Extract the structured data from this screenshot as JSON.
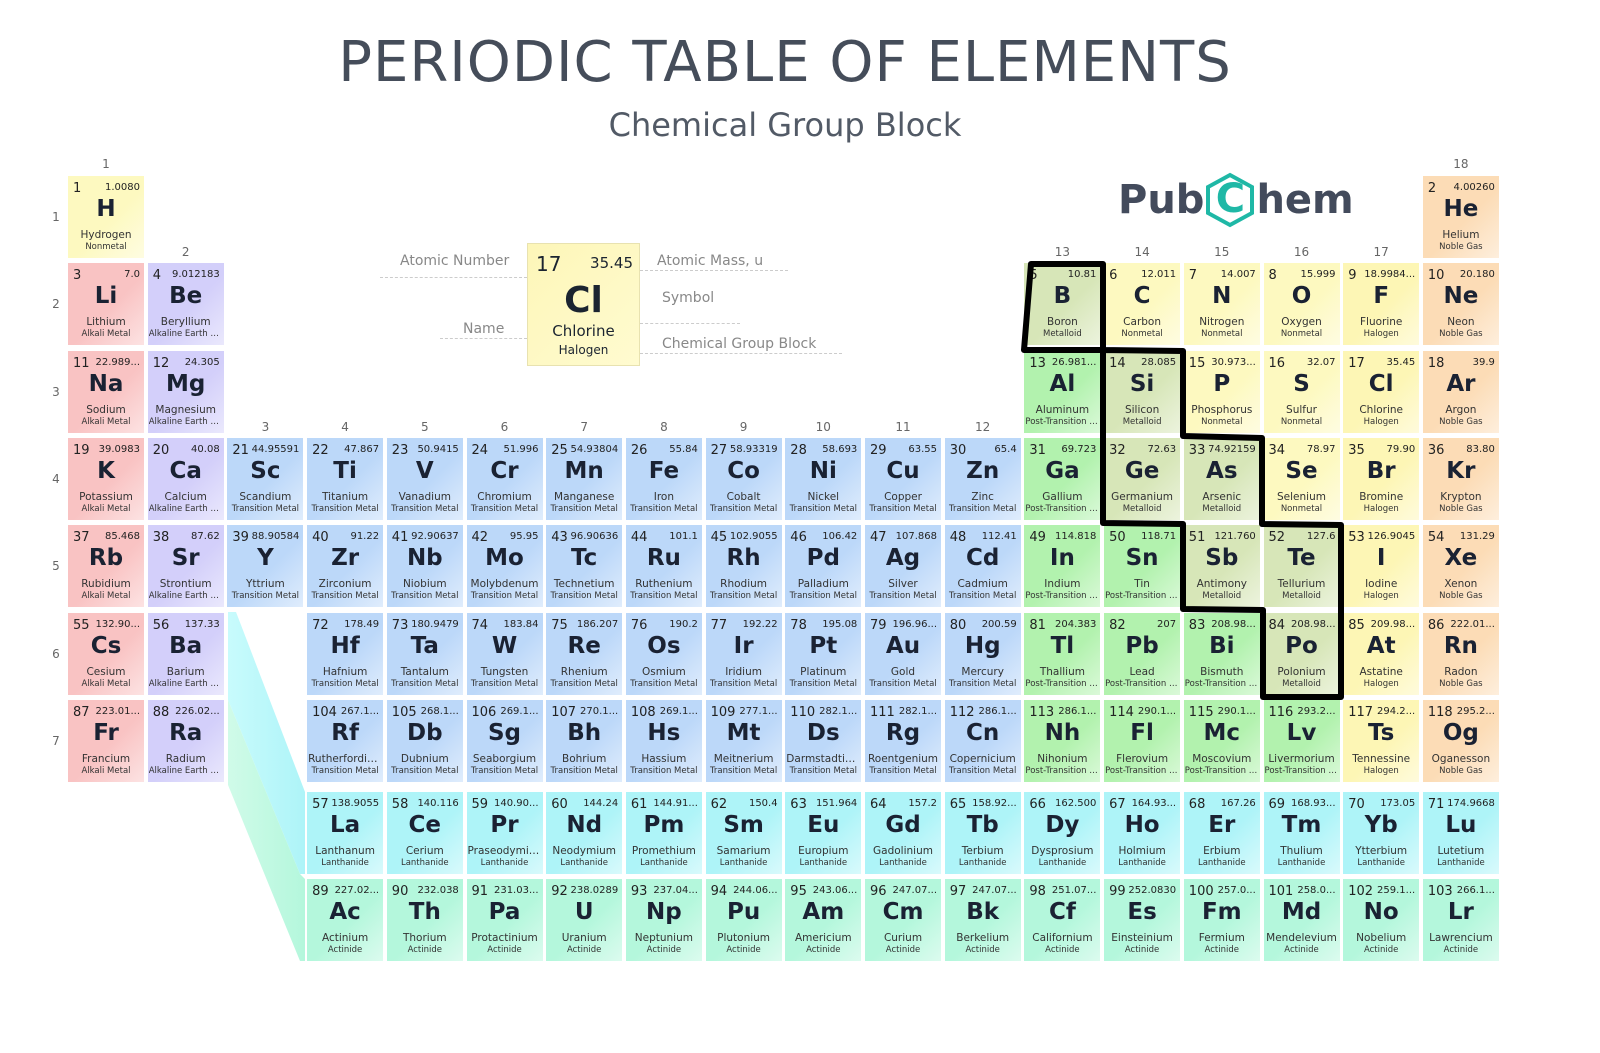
{
  "header": {
    "title": "PERIODIC TABLE OF ELEMENTS",
    "subtitle": "Chemical Group Block"
  },
  "logo": {
    "text_left": "Pub",
    "text_mid": "C",
    "text_right": "hem",
    "color": "#434b5c",
    "accent": "#1fb8a6"
  },
  "groups": [
    "1",
    "2",
    "3",
    "4",
    "5",
    "6",
    "7",
    "8",
    "9",
    "10",
    "11",
    "12",
    "13",
    "14",
    "15",
    "16",
    "17",
    "18"
  ],
  "periods": [
    "1",
    "2",
    "3",
    "4",
    "5",
    "6",
    "7"
  ],
  "key": {
    "number": "17",
    "mass": "35.45",
    "symbol": "Cl",
    "name": "Chlorine",
    "category": "Halogen",
    "labels": {
      "atomic_number": "Atomic Number",
      "name": "Name",
      "atomic_mass": "Atomic Mass, u",
      "symbol": "Symbol",
      "group_block": "Chemical Group Block"
    }
  },
  "categories": {
    "alk": {
      "label": "Alkali Metal",
      "color": "#f9c3c3"
    },
    "ae": {
      "label": "Alkaline Earth Metal",
      "color": "#d3cffa"
    },
    "tm": {
      "label": "Transition Metal",
      "color": "#bcd8f9"
    },
    "ptm": {
      "label": "Post-Transition Metal",
      "color": "#b2f2ae"
    },
    "met": {
      "label": "Metalloid",
      "color": "#d7e6b8"
    },
    "nm": {
      "label": "Nonmetal",
      "color": "#fdf9c0"
    },
    "hal": {
      "label": "Halogen",
      "color": "#fdf6b5"
    },
    "ng": {
      "label": "Noble Gas",
      "color": "#fcdcb6"
    },
    "lan": {
      "label": "Lanthanide",
      "color": "#aef4f8"
    },
    "act": {
      "label": "Actinide",
      "color": "#b4f7dc"
    }
  },
  "highlight": {
    "label": "Metalloid",
    "outline_color": "#000000"
  },
  "elements": [
    {
      "n": "1",
      "s": "H",
      "name": "Hydrogen",
      "m": "1.0080",
      "c": "nm",
      "p": 1,
      "g": 1
    },
    {
      "n": "2",
      "s": "He",
      "name": "Helium",
      "m": "4.00260",
      "c": "ng",
      "p": 1,
      "g": 18
    },
    {
      "n": "3",
      "s": "Li",
      "name": "Lithium",
      "m": "7.0",
      "c": "alk",
      "p": 2,
      "g": 1
    },
    {
      "n": "4",
      "s": "Be",
      "name": "Beryllium",
      "m": "9.012183",
      "c": "ae",
      "p": 2,
      "g": 2
    },
    {
      "n": "5",
      "s": "B",
      "name": "Boron",
      "m": "10.81",
      "c": "met",
      "p": 2,
      "g": 13
    },
    {
      "n": "6",
      "s": "C",
      "name": "Carbon",
      "m": "12.011",
      "c": "nm",
      "p": 2,
      "g": 14
    },
    {
      "n": "7",
      "s": "N",
      "name": "Nitrogen",
      "m": "14.007",
      "c": "nm",
      "p": 2,
      "g": 15
    },
    {
      "n": "8",
      "s": "O",
      "name": "Oxygen",
      "m": "15.999",
      "c": "nm",
      "p": 2,
      "g": 16
    },
    {
      "n": "9",
      "s": "F",
      "name": "Fluorine",
      "m": "18.9984...",
      "c": "hal",
      "p": 2,
      "g": 17
    },
    {
      "n": "10",
      "s": "Ne",
      "name": "Neon",
      "m": "20.180",
      "c": "ng",
      "p": 2,
      "g": 18
    },
    {
      "n": "11",
      "s": "Na",
      "name": "Sodium",
      "m": "22.989...",
      "c": "alk",
      "p": 3,
      "g": 1
    },
    {
      "n": "12",
      "s": "Mg",
      "name": "Magnesium",
      "m": "24.305",
      "c": "ae",
      "p": 3,
      "g": 2
    },
    {
      "n": "13",
      "s": "Al",
      "name": "Aluminum",
      "m": "26.981...",
      "c": "ptm",
      "p": 3,
      "g": 13
    },
    {
      "n": "14",
      "s": "Si",
      "name": "Silicon",
      "m": "28.085",
      "c": "met",
      "p": 3,
      "g": 14
    },
    {
      "n": "15",
      "s": "P",
      "name": "Phosphorus",
      "m": "30.973...",
      "c": "nm",
      "p": 3,
      "g": 15
    },
    {
      "n": "16",
      "s": "S",
      "name": "Sulfur",
      "m": "32.07",
      "c": "nm",
      "p": 3,
      "g": 16
    },
    {
      "n": "17",
      "s": "Cl",
      "name": "Chlorine",
      "m": "35.45",
      "c": "hal",
      "p": 3,
      "g": 17
    },
    {
      "n": "18",
      "s": "Ar",
      "name": "Argon",
      "m": "39.9",
      "c": "ng",
      "p": 3,
      "g": 18
    },
    {
      "n": "19",
      "s": "K",
      "name": "Potassium",
      "m": "39.0983",
      "c": "alk",
      "p": 4,
      "g": 1
    },
    {
      "n": "20",
      "s": "Ca",
      "name": "Calcium",
      "m": "40.08",
      "c": "ae",
      "p": 4,
      "g": 2
    },
    {
      "n": "21",
      "s": "Sc",
      "name": "Scandium",
      "m": "44.95591",
      "c": "tm",
      "p": 4,
      "g": 3
    },
    {
      "n": "22",
      "s": "Ti",
      "name": "Titanium",
      "m": "47.867",
      "c": "tm",
      "p": 4,
      "g": 4
    },
    {
      "n": "23",
      "s": "V",
      "name": "Vanadium",
      "m": "50.9415",
      "c": "tm",
      "p": 4,
      "g": 5
    },
    {
      "n": "24",
      "s": "Cr",
      "name": "Chromium",
      "m": "51.996",
      "c": "tm",
      "p": 4,
      "g": 6
    },
    {
      "n": "25",
      "s": "Mn",
      "name": "Manganese",
      "m": "54.93804",
      "c": "tm",
      "p": 4,
      "g": 7
    },
    {
      "n": "26",
      "s": "Fe",
      "name": "Iron",
      "m": "55.84",
      "c": "tm",
      "p": 4,
      "g": 8
    },
    {
      "n": "27",
      "s": "Co",
      "name": "Cobalt",
      "m": "58.93319",
      "c": "tm",
      "p": 4,
      "g": 9
    },
    {
      "n": "28",
      "s": "Ni",
      "name": "Nickel",
      "m": "58.693",
      "c": "tm",
      "p": 4,
      "g": 10
    },
    {
      "n": "29",
      "s": "Cu",
      "name": "Copper",
      "m": "63.55",
      "c": "tm",
      "p": 4,
      "g": 11
    },
    {
      "n": "30",
      "s": "Zn",
      "name": "Zinc",
      "m": "65.4",
      "c": "tm",
      "p": 4,
      "g": 12
    },
    {
      "n": "31",
      "s": "Ga",
      "name": "Gallium",
      "m": "69.723",
      "c": "ptm",
      "p": 4,
      "g": 13
    },
    {
      "n": "32",
      "s": "Ge",
      "name": "Germanium",
      "m": "72.63",
      "c": "met",
      "p": 4,
      "g": 14
    },
    {
      "n": "33",
      "s": "As",
      "name": "Arsenic",
      "m": "74.92159",
      "c": "met",
      "p": 4,
      "g": 15
    },
    {
      "n": "34",
      "s": "Se",
      "name": "Selenium",
      "m": "78.97",
      "c": "nm",
      "p": 4,
      "g": 16
    },
    {
      "n": "35",
      "s": "Br",
      "name": "Bromine",
      "m": "79.90",
      "c": "hal",
      "p": 4,
      "g": 17
    },
    {
      "n": "36",
      "s": "Kr",
      "name": "Krypton",
      "m": "83.80",
      "c": "ng",
      "p": 4,
      "g": 18
    },
    {
      "n": "37",
      "s": "Rb",
      "name": "Rubidium",
      "m": "85.468",
      "c": "alk",
      "p": 5,
      "g": 1
    },
    {
      "n": "38",
      "s": "Sr",
      "name": "Strontium",
      "m": "87.62",
      "c": "ae",
      "p": 5,
      "g": 2
    },
    {
      "n": "39",
      "s": "Y",
      "name": "Yttrium",
      "m": "88.90584",
      "c": "tm",
      "p": 5,
      "g": 3
    },
    {
      "n": "40",
      "s": "Zr",
      "name": "Zirconium",
      "m": "91.22",
      "c": "tm",
      "p": 5,
      "g": 4
    },
    {
      "n": "41",
      "s": "Nb",
      "name": "Niobium",
      "m": "92.90637",
      "c": "tm",
      "p": 5,
      "g": 5
    },
    {
      "n": "42",
      "s": "Mo",
      "name": "Molybdenum",
      "m": "95.95",
      "c": "tm",
      "p": 5,
      "g": 6
    },
    {
      "n": "43",
      "s": "Tc",
      "name": "Technetium",
      "m": "96.90636",
      "c": "tm",
      "p": 5,
      "g": 7
    },
    {
      "n": "44",
      "s": "Ru",
      "name": "Ruthenium",
      "m": "101.1",
      "c": "tm",
      "p": 5,
      "g": 8
    },
    {
      "n": "45",
      "s": "Rh",
      "name": "Rhodium",
      "m": "102.9055",
      "c": "tm",
      "p": 5,
      "g": 9
    },
    {
      "n": "46",
      "s": "Pd",
      "name": "Palladium",
      "m": "106.42",
      "c": "tm",
      "p": 5,
      "g": 10
    },
    {
      "n": "47",
      "s": "Ag",
      "name": "Silver",
      "m": "107.868",
      "c": "tm",
      "p": 5,
      "g": 11
    },
    {
      "n": "48",
      "s": "Cd",
      "name": "Cadmium",
      "m": "112.41",
      "c": "tm",
      "p": 5,
      "g": 12
    },
    {
      "n": "49",
      "s": "In",
      "name": "Indium",
      "m": "114.818",
      "c": "ptm",
      "p": 5,
      "g": 13
    },
    {
      "n": "50",
      "s": "Sn",
      "name": "Tin",
      "m": "118.71",
      "c": "ptm",
      "p": 5,
      "g": 14
    },
    {
      "n": "51",
      "s": "Sb",
      "name": "Antimony",
      "m": "121.760",
      "c": "met",
      "p": 5,
      "g": 15
    },
    {
      "n": "52",
      "s": "Te",
      "name": "Tellurium",
      "m": "127.6",
      "c": "met",
      "p": 5,
      "g": 16
    },
    {
      "n": "53",
      "s": "I",
      "name": "Iodine",
      "m": "126.9045",
      "c": "hal",
      "p": 5,
      "g": 17
    },
    {
      "n": "54",
      "s": "Xe",
      "name": "Xenon",
      "m": "131.29",
      "c": "ng",
      "p": 5,
      "g": 18
    },
    {
      "n": "55",
      "s": "Cs",
      "name": "Cesium",
      "m": "132.90...",
      "c": "alk",
      "p": 6,
      "g": 1
    },
    {
      "n": "56",
      "s": "Ba",
      "name": "Barium",
      "m": "137.33",
      "c": "ae",
      "p": 6,
      "g": 2
    },
    {
      "n": "72",
      "s": "Hf",
      "name": "Hafnium",
      "m": "178.49",
      "c": "tm",
      "p": 6,
      "g": 4
    },
    {
      "n": "73",
      "s": "Ta",
      "name": "Tantalum",
      "m": "180.9479",
      "c": "tm",
      "p": 6,
      "g": 5
    },
    {
      "n": "74",
      "s": "W",
      "name": "Tungsten",
      "m": "183.84",
      "c": "tm",
      "p": 6,
      "g": 6
    },
    {
      "n": "75",
      "s": "Re",
      "name": "Rhenium",
      "m": "186.207",
      "c": "tm",
      "p": 6,
      "g": 7
    },
    {
      "n": "76",
      "s": "Os",
      "name": "Osmium",
      "m": "190.2",
      "c": "tm",
      "p": 6,
      "g": 8
    },
    {
      "n": "77",
      "s": "Ir",
      "name": "Iridium",
      "m": "192.22",
      "c": "tm",
      "p": 6,
      "g": 9
    },
    {
      "n": "78",
      "s": "Pt",
      "name": "Platinum",
      "m": "195.08",
      "c": "tm",
      "p": 6,
      "g": 10
    },
    {
      "n": "79",
      "s": "Au",
      "name": "Gold",
      "m": "196.96...",
      "c": "tm",
      "p": 6,
      "g": 11
    },
    {
      "n": "80",
      "s": "Hg",
      "name": "Mercury",
      "m": "200.59",
      "c": "tm",
      "p": 6,
      "g": 12
    },
    {
      "n": "81",
      "s": "Tl",
      "name": "Thallium",
      "m": "204.383",
      "c": "ptm",
      "p": 6,
      "g": 13
    },
    {
      "n": "82",
      "s": "Pb",
      "name": "Lead",
      "m": "207",
      "c": "ptm",
      "p": 6,
      "g": 14
    },
    {
      "n": "83",
      "s": "Bi",
      "name": "Bismuth",
      "m": "208.98...",
      "c": "ptm",
      "p": 6,
      "g": 15
    },
    {
      "n": "84",
      "s": "Po",
      "name": "Polonium",
      "m": "208.98...",
      "c": "met",
      "p": 6,
      "g": 16
    },
    {
      "n": "85",
      "s": "At",
      "name": "Astatine",
      "m": "209.98...",
      "c": "hal",
      "p": 6,
      "g": 17
    },
    {
      "n": "86",
      "s": "Rn",
      "name": "Radon",
      "m": "222.01...",
      "c": "ng",
      "p": 6,
      "g": 18
    },
    {
      "n": "87",
      "s": "Fr",
      "name": "Francium",
      "m": "223.01...",
      "c": "alk",
      "p": 7,
      "g": 1
    },
    {
      "n": "88",
      "s": "Ra",
      "name": "Radium",
      "m": "226.02...",
      "c": "ae",
      "p": 7,
      "g": 2
    },
    {
      "n": "104",
      "s": "Rf",
      "name": "Rutherfordium",
      "m": "267.1...",
      "c": "tm",
      "p": 7,
      "g": 4
    },
    {
      "n": "105",
      "s": "Db",
      "name": "Dubnium",
      "m": "268.1...",
      "c": "tm",
      "p": 7,
      "g": 5
    },
    {
      "n": "106",
      "s": "Sg",
      "name": "Seaborgium",
      "m": "269.1...",
      "c": "tm",
      "p": 7,
      "g": 6
    },
    {
      "n": "107",
      "s": "Bh",
      "name": "Bohrium",
      "m": "270.1...",
      "c": "tm",
      "p": 7,
      "g": 7
    },
    {
      "n": "108",
      "s": "Hs",
      "name": "Hassium",
      "m": "269.1...",
      "c": "tm",
      "p": 7,
      "g": 8
    },
    {
      "n": "109",
      "s": "Mt",
      "name": "Meitnerium",
      "m": "277.1...",
      "c": "tm",
      "p": 7,
      "g": 9
    },
    {
      "n": "110",
      "s": "Ds",
      "name": "Darmstadtium",
      "m": "282.1...",
      "c": "tm",
      "p": 7,
      "g": 10
    },
    {
      "n": "111",
      "s": "Rg",
      "name": "Roentgenium",
      "m": "282.1...",
      "c": "tm",
      "p": 7,
      "g": 11
    },
    {
      "n": "112",
      "s": "Cn",
      "name": "Copernicium",
      "m": "286.1...",
      "c": "tm",
      "p": 7,
      "g": 12
    },
    {
      "n": "113",
      "s": "Nh",
      "name": "Nihonium",
      "m": "286.1...",
      "c": "ptm",
      "p": 7,
      "g": 13
    },
    {
      "n": "114",
      "s": "Fl",
      "name": "Flerovium",
      "m": "290.1...",
      "c": "ptm",
      "p": 7,
      "g": 14
    },
    {
      "n": "115",
      "s": "Mc",
      "name": "Moscovium",
      "m": "290.1...",
      "c": "ptm",
      "p": 7,
      "g": 15
    },
    {
      "n": "116",
      "s": "Lv",
      "name": "Livermorium",
      "m": "293.2...",
      "c": "ptm",
      "p": 7,
      "g": 16
    },
    {
      "n": "117",
      "s": "Ts",
      "name": "Tennessine",
      "m": "294.2...",
      "c": "hal",
      "p": 7,
      "g": 17
    },
    {
      "n": "118",
      "s": "Og",
      "name": "Oganesson",
      "m": "295.2...",
      "c": "ng",
      "p": 7,
      "g": 18
    }
  ],
  "f_block": {
    "lanthanides": [
      {
        "n": "57",
        "s": "La",
        "name": "Lanthanum",
        "m": "138.9055"
      },
      {
        "n": "58",
        "s": "Ce",
        "name": "Cerium",
        "m": "140.116"
      },
      {
        "n": "59",
        "s": "Pr",
        "name": "Praseodymium",
        "m": "140.90..."
      },
      {
        "n": "60",
        "s": "Nd",
        "name": "Neodymium",
        "m": "144.24"
      },
      {
        "n": "61",
        "s": "Pm",
        "name": "Promethium",
        "m": "144.91..."
      },
      {
        "n": "62",
        "s": "Sm",
        "name": "Samarium",
        "m": "150.4"
      },
      {
        "n": "63",
        "s": "Eu",
        "name": "Europium",
        "m": "151.964"
      },
      {
        "n": "64",
        "s": "Gd",
        "name": "Gadolinium",
        "m": "157.2"
      },
      {
        "n": "65",
        "s": "Tb",
        "name": "Terbium",
        "m": "158.92..."
      },
      {
        "n": "66",
        "s": "Dy",
        "name": "Dysprosium",
        "m": "162.500"
      },
      {
        "n": "67",
        "s": "Ho",
        "name": "Holmium",
        "m": "164.93..."
      },
      {
        "n": "68",
        "s": "Er",
        "name": "Erbium",
        "m": "167.26"
      },
      {
        "n": "69",
        "s": "Tm",
        "name": "Thulium",
        "m": "168.93..."
      },
      {
        "n": "70",
        "s": "Yb",
        "name": "Ytterbium",
        "m": "173.05"
      },
      {
        "n": "71",
        "s": "Lu",
        "name": "Lutetium",
        "m": "174.9668"
      }
    ],
    "actinides": [
      {
        "n": "89",
        "s": "Ac",
        "name": "Actinium",
        "m": "227.02..."
      },
      {
        "n": "90",
        "s": "Th",
        "name": "Thorium",
        "m": "232.038"
      },
      {
        "n": "91",
        "s": "Pa",
        "name": "Protactinium",
        "m": "231.03..."
      },
      {
        "n": "92",
        "s": "U",
        "name": "Uranium",
        "m": "238.0289"
      },
      {
        "n": "93",
        "s": "Np",
        "name": "Neptunium",
        "m": "237.04..."
      },
      {
        "n": "94",
        "s": "Pu",
        "name": "Plutonium",
        "m": "244.06..."
      },
      {
        "n": "95",
        "s": "Am",
        "name": "Americium",
        "m": "243.06..."
      },
      {
        "n": "96",
        "s": "Cm",
        "name": "Curium",
        "m": "247.07..."
      },
      {
        "n": "97",
        "s": "Bk",
        "name": "Berkelium",
        "m": "247.07..."
      },
      {
        "n": "98",
        "s": "Cf",
        "name": "Californium",
        "m": "251.07..."
      },
      {
        "n": "99",
        "s": "Es",
        "name": "Einsteinium",
        "m": "252.0830"
      },
      {
        "n": "100",
        "s": "Fm",
        "name": "Fermium",
        "m": "257.0..."
      },
      {
        "n": "101",
        "s": "Md",
        "name": "Mendelevium",
        "m": "258.0..."
      },
      {
        "n": "102",
        "s": "No",
        "name": "Nobelium",
        "m": "259.1..."
      },
      {
        "n": "103",
        "s": "Lr",
        "name": "Lawrencium",
        "m": "266.1..."
      }
    ]
  }
}
